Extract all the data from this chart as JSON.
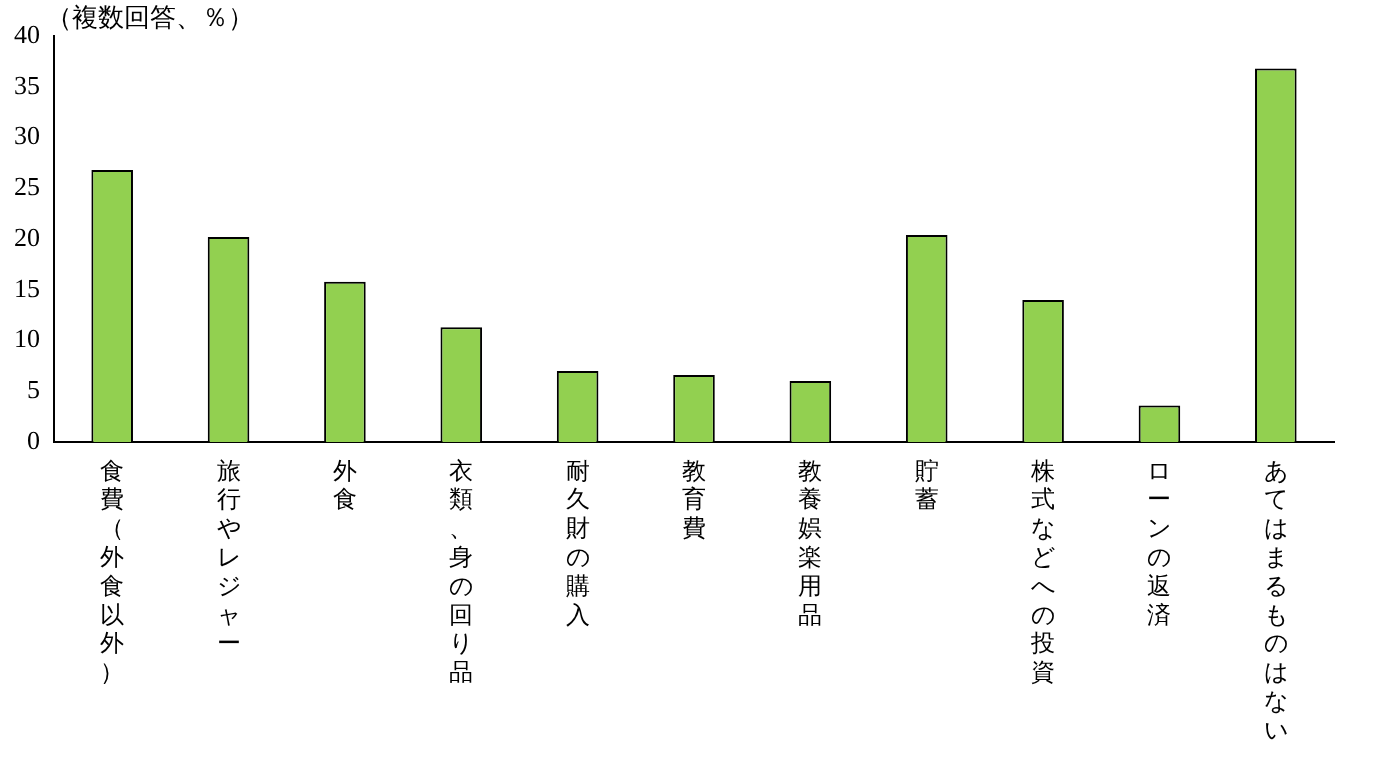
{
  "chart_data": {
    "type": "bar",
    "ylabel": "（複数回答、％）",
    "categories": [
      "食費（外食以外）",
      "旅行やレジャー",
      "外食",
      "衣類、身の回り品",
      "耐久財の購入",
      "教育費",
      "教養娯楽用品",
      "貯蓄",
      "株式などへの投資",
      "ローンの返済",
      "あてはまるものはない"
    ],
    "values": [
      26.8,
      20.2,
      15.8,
      11.3,
      7.0,
      6.6,
      6.0,
      20.4,
      14.0,
      3.6,
      36.8
    ],
    "color": "#92d050",
    "ylim": [
      0,
      40
    ],
    "yticks": [
      0,
      5,
      10,
      15,
      20,
      25,
      30,
      35,
      40
    ],
    "grid": false,
    "legend": false
  }
}
